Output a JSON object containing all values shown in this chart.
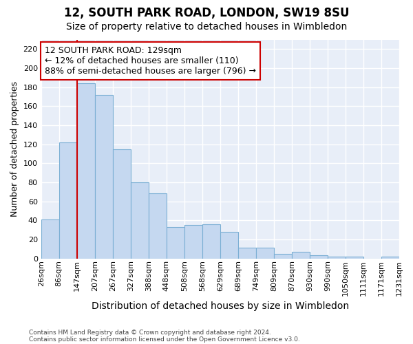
{
  "title1": "12, SOUTH PARK ROAD, LONDON, SW19 8SU",
  "title2": "Size of property relative to detached houses in Wimbledon",
  "xlabel": "Distribution of detached houses by size in Wimbledon",
  "ylabel": "Number of detached properties",
  "footnote1": "Contains HM Land Registry data © Crown copyright and database right 2024.",
  "footnote2": "Contains public sector information licensed under the Open Government Licence v3.0.",
  "bar_values": [
    41,
    122,
    184,
    172,
    115,
    80,
    68,
    33,
    35,
    36,
    28,
    11,
    11,
    5,
    7,
    3,
    2,
    2,
    0,
    2
  ],
  "bar_labels": [
    "26sqm",
    "86sqm",
    "147sqm",
    "207sqm",
    "267sqm",
    "327sqm",
    "388sqm",
    "448sqm",
    "508sqm",
    "568sqm",
    "629sqm",
    "689sqm",
    "749sqm",
    "809sqm",
    "870sqm",
    "930sqm",
    "990sqm",
    "1050sqm",
    "1111sqm",
    "1171sqm",
    "1231sqm"
  ],
  "bar_color": "#c5d8f0",
  "bar_edge_color": "#7bafd4",
  "highlight_line_color": "#cc0000",
  "highlight_line_bar_index": 2,
  "ylim": [
    0,
    230
  ],
  "yticks": [
    0,
    20,
    40,
    60,
    80,
    100,
    120,
    140,
    160,
    180,
    200,
    220
  ],
  "annotation_text": "12 SOUTH PARK ROAD: 129sqm\n← 12% of detached houses are smaller (110)\n88% of semi-detached houses are larger (796) →",
  "annotation_box_facecolor": "#ffffff",
  "annotation_box_edgecolor": "#cc0000",
  "title1_fontsize": 12,
  "title2_fontsize": 10,
  "xlabel_fontsize": 10,
  "ylabel_fontsize": 9,
  "tick_fontsize": 8,
  "annotation_fontsize": 9,
  "fig_facecolor": "#ffffff",
  "axes_facecolor": "#e8eef8",
  "grid_color": "#ffffff"
}
